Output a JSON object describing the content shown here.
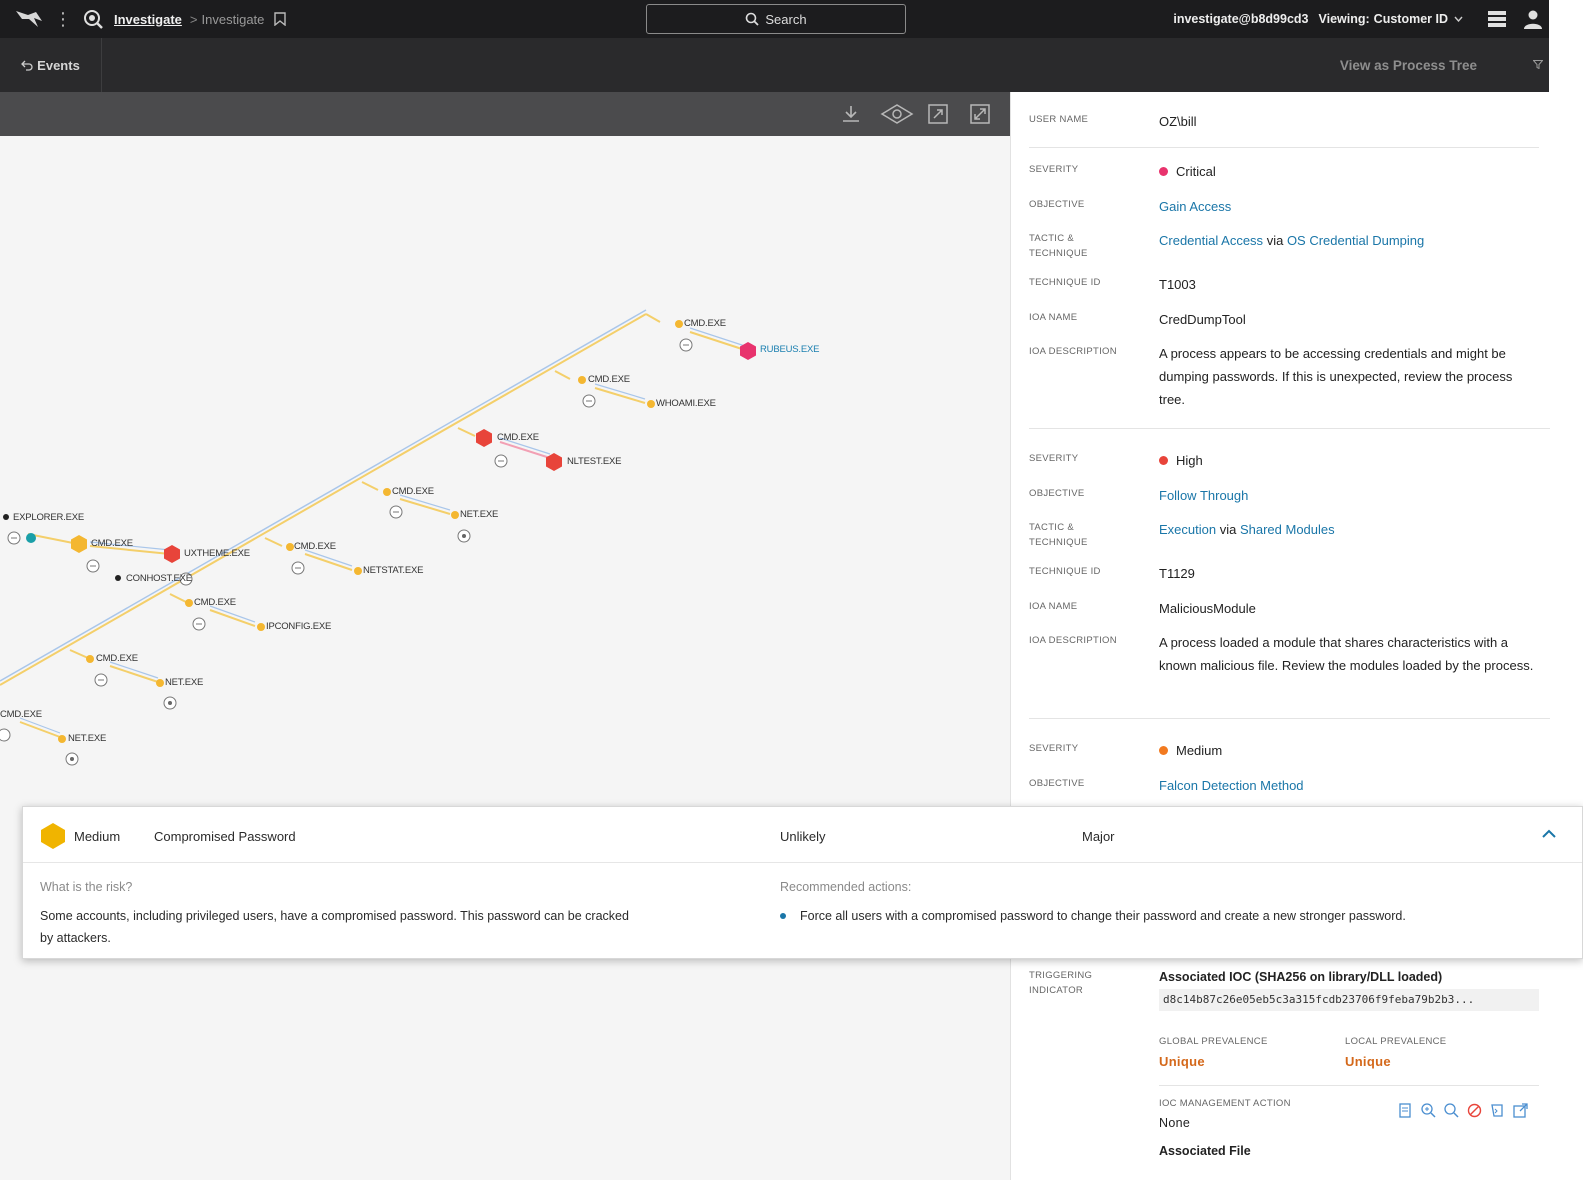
{
  "topbar": {
    "crumb_main": "Investigate",
    "crumb_sep": ">",
    "crumb_sub": "Investigate",
    "search_label": "Search",
    "user": "investigate@b8d99cd3",
    "viewing_label": "Viewing:",
    "viewing_value": "Customer ID"
  },
  "subbar": {
    "events_label": "Events",
    "process_tree_label": "View as Process Tree"
  },
  "graph": {
    "nodes": [
      {
        "id": "n1",
        "label": "CMD.EXE"
      },
      {
        "id": "n2",
        "label": "RUBEUS.EXE"
      },
      {
        "id": "n3",
        "label": "CMD.EXE"
      },
      {
        "id": "n4",
        "label": "WHOAMI.EXE"
      },
      {
        "id": "n5",
        "label": "CMD.EXE"
      },
      {
        "id": "n6",
        "label": "NLTEST.EXE"
      },
      {
        "id": "n7",
        "label": "CMD.EXE"
      },
      {
        "id": "n8",
        "label": "NET.EXE"
      },
      {
        "id": "n9",
        "label": "EXPLORER.EXE"
      },
      {
        "id": "n10",
        "label": "CMD.EXE"
      },
      {
        "id": "n11",
        "label": "UXTHEME.EXE"
      },
      {
        "id": "n12",
        "label": "CMD.EXE"
      },
      {
        "id": "n13",
        "label": "NETSTAT.EXE"
      },
      {
        "id": "n14",
        "label": "CONHOST.EXE"
      },
      {
        "id": "n15",
        "label": "CMD.EXE"
      },
      {
        "id": "n16",
        "label": "IPCONFIG.EXE"
      },
      {
        "id": "n17",
        "label": "CMD.EXE"
      },
      {
        "id": "n18",
        "label": "NET.EXE"
      },
      {
        "id": "n19",
        "label": "CMD.EXE"
      },
      {
        "id": "n20",
        "label": "NET.EXE"
      }
    ]
  },
  "details": {
    "user_name_label": "USER NAME",
    "user_name": "OZ\\bill",
    "detections": [
      {
        "severity_label": "SEVERITY",
        "severity": "Critical",
        "severity_color": "#e8336d",
        "objective_label": "OBJECTIVE",
        "objective": "Gain Access",
        "tactic_label": "TACTIC & TECHNIQUE",
        "tactic": "Credential Access",
        "via": "via",
        "technique": "OS Credential Dumping",
        "technique_id_label": "TECHNIQUE ID",
        "technique_id": "T1003",
        "ioa_name_label": "IOA NAME",
        "ioa_name": "CredDumpTool",
        "ioa_desc_label": "IOA DESCRIPTION",
        "ioa_desc": "A process appears to be accessing credentials and might be dumping passwords. If this is unexpected, review the process tree."
      },
      {
        "severity_label": "SEVERITY",
        "severity": "High",
        "severity_color": "#e8443a",
        "objective_label": "OBJECTIVE",
        "objective": "Follow Through",
        "tactic_label": "TACTIC & TECHNIQUE",
        "tactic": "Execution",
        "via": "via",
        "technique": "Shared Modules",
        "technique_id_label": "TECHNIQUE ID",
        "technique_id": "T1129",
        "ioa_name_label": "IOA NAME",
        "ioa_name": "MaliciousModule",
        "ioa_desc_label": "IOA DESCRIPTION",
        "ioa_desc": "A process loaded a module that shares characteristics with a known malicious file. Review the modules loaded by the process."
      },
      {
        "severity_label": "SEVERITY",
        "severity": "Medium",
        "severity_color": "#f27a20",
        "objective_label": "OBJECTIVE",
        "objective": "Falcon Detection Method"
      }
    ],
    "triggering_label": "TRIGGERING INDICATOR",
    "triggering_title": "Associated IOC (SHA256 on library/DLL loaded)",
    "hash": "d8c14b87c26e05eb5c3a315fcdb23706f9feba79b2b3...",
    "global_prev_label": "GLOBAL PREVALENCE",
    "global_prev": "Unique",
    "local_prev_label": "LOCAL PREVALENCE",
    "local_prev": "Unique",
    "ioc_action_label": "IOC MANAGEMENT ACTION",
    "ioc_action": "None",
    "associated_file_label": "Associated File"
  },
  "risk_card": {
    "severity": "Medium",
    "severity_color": "#f0b400",
    "name": "Compromised Password",
    "likelihood": "Unlikely",
    "impact": "Major",
    "question": "What is the risk?",
    "answer": "Some accounts, including privileged users, have a compromised password. This password can be cracked by attackers.",
    "recommended_label": "Recommended actions:",
    "recommended_items": [
      "Force all users with a compromised password to change their password and create a new stronger password."
    ]
  },
  "colors": {
    "accent": "#1a76a8",
    "orange_text": "#d4681a",
    "node_yellow": "#f4b731",
    "node_pink": "#e8336d"
  }
}
